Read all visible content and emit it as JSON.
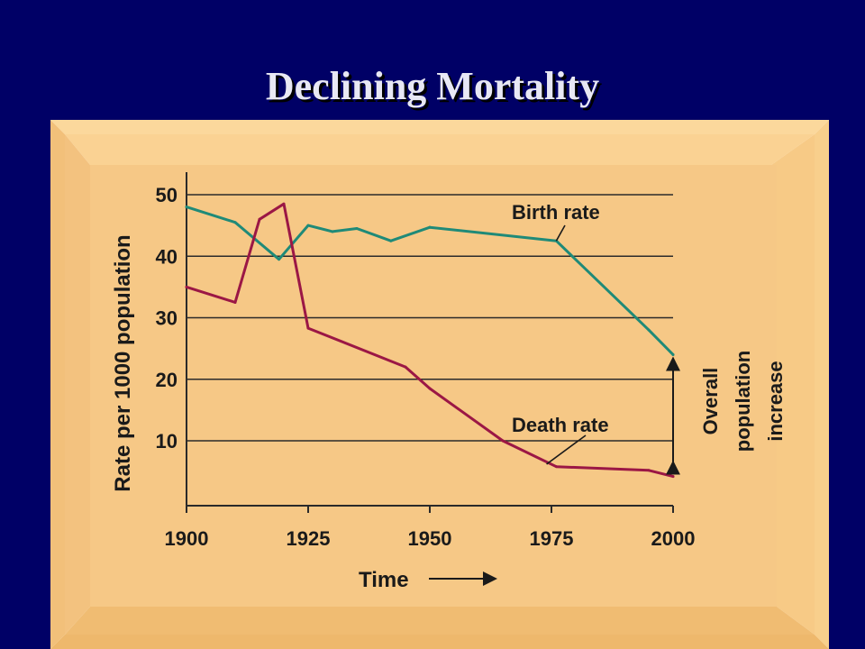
{
  "slide": {
    "title": "Declining Mortality",
    "background_color": "#000066",
    "frame_color": "#f5c77e"
  },
  "chart_data": {
    "type": "line",
    "title": "",
    "xlabel": "Time",
    "ylabel": "Rate per 1000 population",
    "xlim": [
      1900,
      2000
    ],
    "ylim": [
      0,
      55
    ],
    "x_ticks": [
      "1900",
      "1925",
      "1950",
      "1975",
      "2000"
    ],
    "y_ticks": [
      "10",
      "20",
      "30",
      "40",
      "50"
    ],
    "grid": "horizontal",
    "series": [
      {
        "name": "Birth rate",
        "color": "#1f8a78",
        "x": [
          1900,
          1910,
          1919,
          1925,
          1930,
          1935,
          1942,
          1950,
          1976,
          1995,
          2000
        ],
        "y": [
          48,
          45.5,
          39.5,
          45,
          44,
          44.5,
          42.5,
          44.7,
          42.5,
          28,
          24
        ]
      },
      {
        "name": "Death rate",
        "color": "#9b1745",
        "x": [
          1900,
          1910,
          1915,
          1920,
          1925,
          1945,
          1950,
          1965,
          1976,
          1995,
          2000
        ],
        "y": [
          35,
          32.5,
          46,
          48.5,
          28.3,
          22,
          18.5,
          10,
          5.8,
          5.2,
          4.2
        ]
      }
    ],
    "annotation": {
      "lines": [
        "Overall",
        "population",
        "increase"
      ],
      "arrow_from_year": 2000,
      "arrow_y_range": [
        4.2,
        24
      ]
    }
  }
}
